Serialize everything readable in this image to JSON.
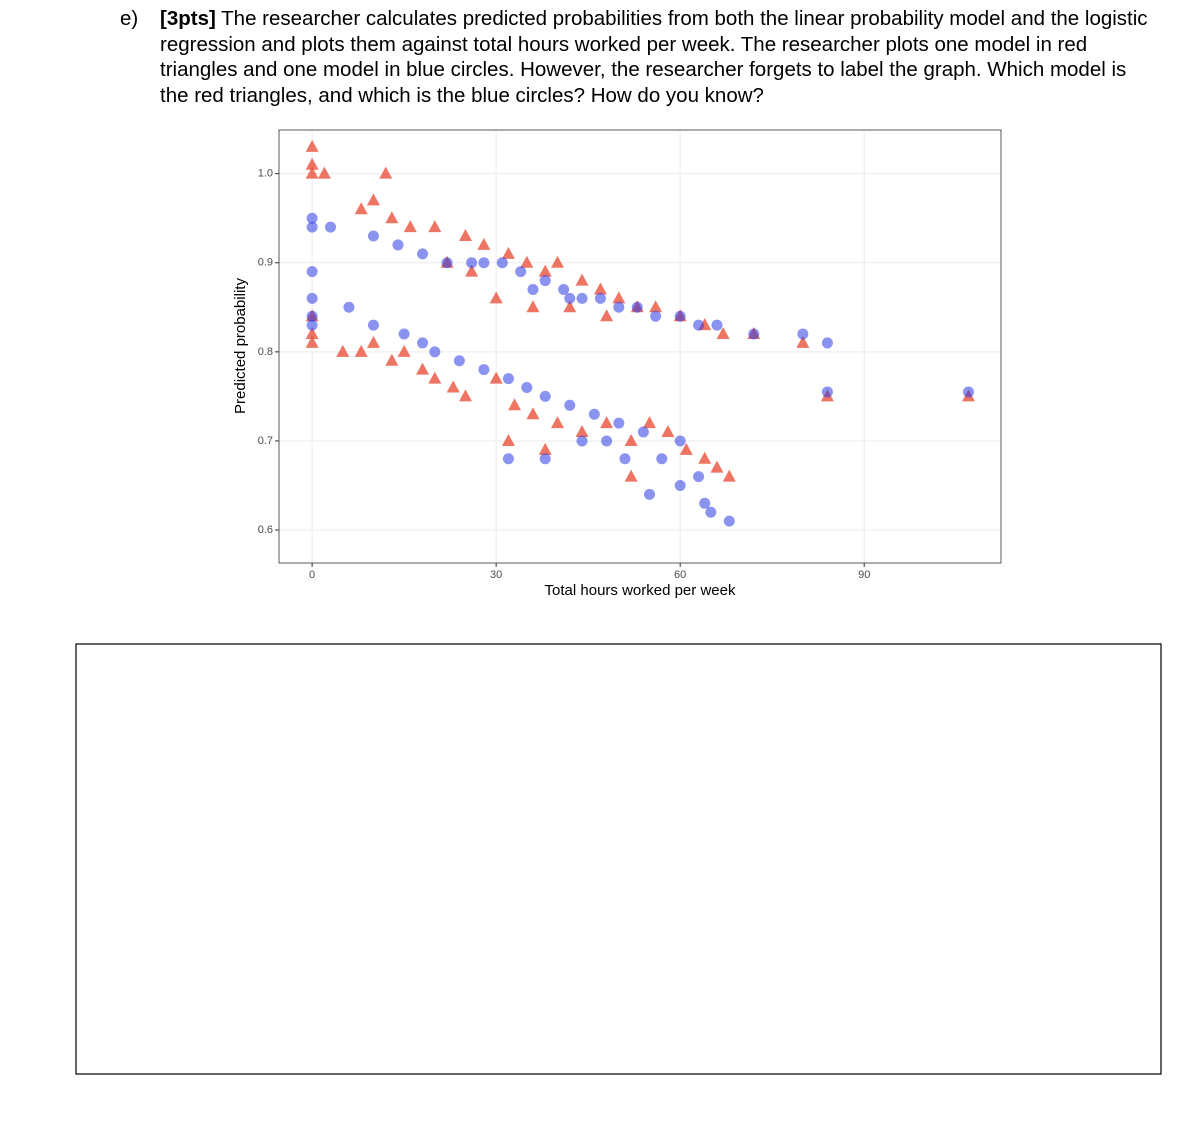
{
  "question": {
    "label": "e)",
    "points": "[3pts]",
    "text": "The researcher calculates predicted probabilities from both the linear probability model and the logistic regression and plots them against total hours worked per week. The researcher plots one model in red triangles and one model in blue circles. However, the researcher forgets to label the graph. Which model is the red triangles, and which is the blue circles? How do you know?"
  },
  "chart_data": {
    "type": "scatter",
    "x_label": "Total hours worked per week",
    "y_label": "Predicted probability",
    "xlim": [
      -5.4,
      112.3
    ],
    "ylim": [
      0.563,
      1.049
    ],
    "xticks": [
      0,
      30,
      60,
      90
    ],
    "yticks": [
      0.6,
      0.7,
      0.8,
      0.9,
      {
        "value": 1,
        "label": "1.0"
      }
    ],
    "grid": true,
    "series": [
      {
        "color": "#e8472f",
        "marker": "triangle",
        "x": [
          0,
          0,
          0,
          2,
          12,
          8,
          10,
          13,
          16,
          20,
          25,
          28,
          32,
          35,
          38,
          40,
          44,
          47,
          50,
          53,
          56,
          60,
          64,
          67,
          72,
          80,
          84,
          107,
          30,
          36,
          42,
          48,
          22,
          26,
          0,
          0,
          0,
          5,
          8,
          10,
          13,
          15,
          18,
          20,
          23,
          25,
          30,
          33,
          36,
          40,
          44,
          48,
          52,
          55,
          58,
          61,
          64,
          66,
          68,
          32,
          38,
          52
        ],
        "y": [
          1.03,
          1.01,
          1.0,
          1.0,
          1.0,
          0.96,
          0.97,
          0.95,
          0.94,
          0.94,
          0.93,
          0.92,
          0.91,
          0.9,
          0.89,
          0.9,
          0.88,
          0.87,
          0.86,
          0.85,
          0.85,
          0.84,
          0.83,
          0.82,
          0.82,
          0.81,
          0.75,
          0.75,
          0.86,
          0.85,
          0.85,
          0.84,
          0.9,
          0.89,
          0.84,
          0.82,
          0.81,
          0.8,
          0.8,
          0.81,
          0.79,
          0.8,
          0.78,
          0.77,
          0.76,
          0.75,
          0.77,
          0.74,
          0.73,
          0.72,
          0.71,
          0.72,
          0.7,
          0.72,
          0.71,
          0.69,
          0.68,
          0.67,
          0.66,
          0.7,
          0.69,
          0.66
        ]
      },
      {
        "color": "#2b3be6",
        "marker": "circle",
        "x": [
          0,
          0,
          3,
          10,
          14,
          18,
          22,
          26,
          28,
          31,
          34,
          38,
          41,
          44,
          47,
          50,
          53,
          56,
          60,
          63,
          66,
          72,
          80,
          84,
          107,
          84,
          0,
          0,
          36,
          42,
          0,
          0,
          6,
          10,
          15,
          18,
          20,
          24,
          28,
          32,
          35,
          38,
          42,
          46,
          50,
          54,
          55,
          60,
          63,
          60,
          65,
          68,
          32,
          38,
          44,
          48,
          51,
          57,
          64
        ],
        "y": [
          0.95,
          0.94,
          0.94,
          0.93,
          0.92,
          0.91,
          0.9,
          0.9,
          0.9,
          0.9,
          0.89,
          0.88,
          0.87,
          0.86,
          0.86,
          0.85,
          0.85,
          0.84,
          0.84,
          0.83,
          0.83,
          0.82,
          0.82,
          0.81,
          0.755,
          0.755,
          0.89,
          0.86,
          0.87,
          0.86,
          0.84,
          0.83,
          0.85,
          0.83,
          0.82,
          0.81,
          0.8,
          0.79,
          0.78,
          0.77,
          0.76,
          0.75,
          0.74,
          0.73,
          0.72,
          0.71,
          0.64,
          0.7,
          0.66,
          0.65,
          0.62,
          0.61,
          0.68,
          0.68,
          0.7,
          0.7,
          0.68,
          0.68,
          0.63
        ]
      }
    ]
  }
}
